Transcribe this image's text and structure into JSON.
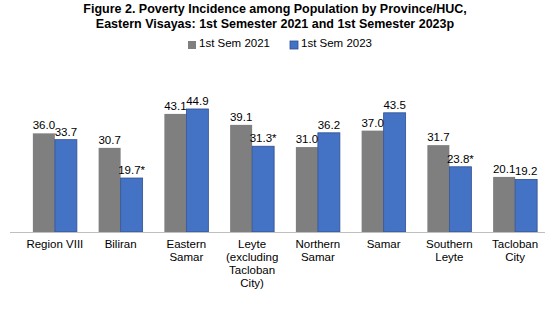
{
  "chart_data": {
    "type": "bar",
    "title": "Figure 2. Poverty Incidence among Population by Province/HUC, Eastern Visayas: 1st Semester 2021 and 1st Semester 2023p",
    "categories": [
      "Region VIII",
      "Biliran",
      "Eastern Samar",
      "Leyte (excluding Tacloban City)",
      "Northern Samar",
      "Samar",
      "Southern Leyte",
      "Tacloban City"
    ],
    "series": [
      {
        "name": "1st Sem 2021",
        "color": "#7f7f7f",
        "values": [
          36.0,
          30.7,
          43.1,
          39.1,
          31.0,
          37.0,
          31.7,
          20.1
        ],
        "value_labels": [
          "36.0",
          "30.7",
          "43.1",
          "39.1",
          "31.0",
          "37.0",
          "31.7",
          "20.1"
        ]
      },
      {
        "name": "1st Sem 2023",
        "color": "#4472c4",
        "values": [
          33.7,
          19.7,
          44.9,
          31.3,
          36.2,
          43.5,
          23.8,
          19.2
        ],
        "value_labels": [
          "33.7",
          "19.7*",
          "44.9",
          "31.3*",
          "36.2",
          "43.5",
          "23.8*",
          "19.2"
        ]
      }
    ],
    "ylim": [
      0,
      50
    ],
    "data_labels": true,
    "tick_labels": "x",
    "legend": "top",
    "grid": false
  }
}
